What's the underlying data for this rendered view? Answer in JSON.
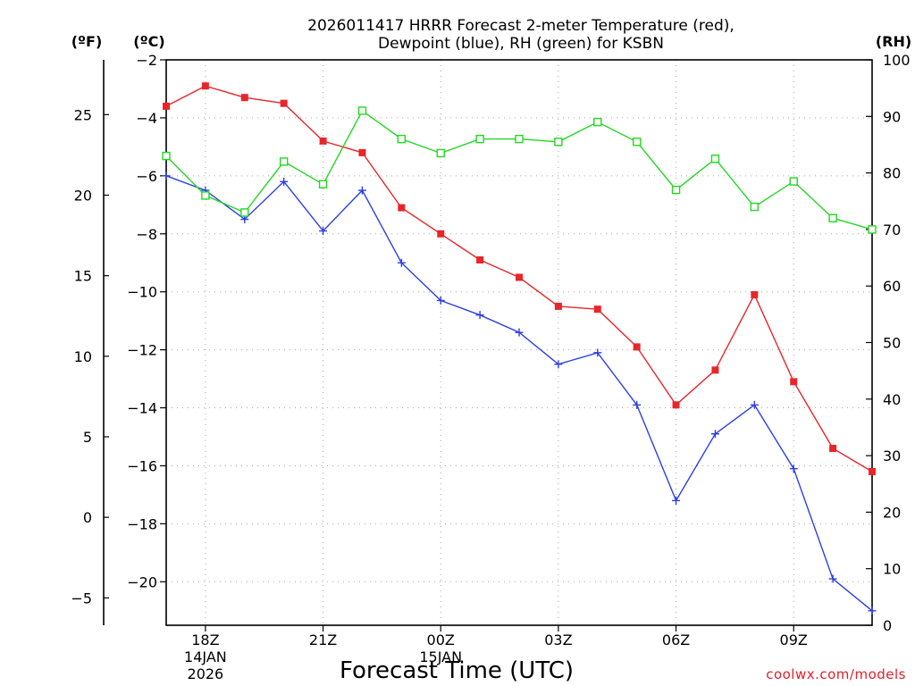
{
  "chart_data": {
    "type": "line",
    "title_line1": "2026011417 HRRR Forecast 2-meter Temperature (red),",
    "title_line2": "Dewpoint (blue), RH (green) for KSBN",
    "xlabel": "Forecast Time (UTC)",
    "credit": "coolwx.com/models",
    "units": {
      "fahrenheit": "(ºF)",
      "celsius": "(ºC)",
      "rh": "(RH)"
    },
    "x": [
      17,
      18,
      19,
      20,
      21,
      22,
      23,
      24,
      25,
      26,
      27,
      28,
      29,
      30,
      31,
      32,
      33,
      34,
      35
    ],
    "xlim": [
      17,
      35
    ],
    "x_ticks": [
      {
        "x": 18,
        "label": "18Z",
        "sub1": "14JAN",
        "sub2": "2026"
      },
      {
        "x": 21,
        "label": "21Z",
        "sub1": "",
        "sub2": ""
      },
      {
        "x": 24,
        "label": "00Z",
        "sub1": "15JAN",
        "sub2": ""
      },
      {
        "x": 27,
        "label": "03Z",
        "sub1": "",
        "sub2": ""
      },
      {
        "x": 30,
        "label": "06Z",
        "sub1": "",
        "sub2": ""
      },
      {
        "x": 33,
        "label": "09Z",
        "sub1": "",
        "sub2": ""
      }
    ],
    "celsius_axis": {
      "ylim": [
        -21.5,
        -2
      ],
      "ticks": [
        -2,
        -4,
        -6,
        -8,
        -10,
        -12,
        -14,
        -16,
        -18,
        -20
      ],
      "tick_labels": [
        "−2",
        "−4",
        "−6",
        "−8",
        "−10",
        "−12",
        "−14",
        "−16",
        "−18",
        "−20"
      ]
    },
    "fahrenheit_axis": {
      "ticks": [
        25,
        20,
        15,
        10,
        5,
        0,
        -5
      ],
      "tick_labels": [
        "25",
        "20",
        "15",
        "10",
        "5",
        "0",
        "−5"
      ]
    },
    "rh_axis": {
      "ylim": [
        0,
        100
      ],
      "ticks": [
        0,
        10,
        20,
        30,
        40,
        50,
        60,
        70,
        80,
        90,
        100
      ],
      "tick_labels": [
        "0",
        "10",
        "20",
        "30",
        "40",
        "50",
        "60",
        "70",
        "80",
        "90",
        "100"
      ]
    },
    "series": [
      {
        "name": "Temperature",
        "axis": "celsius",
        "color": "#e8262a",
        "marker": "filled-square",
        "values": [
          -3.6,
          -2.9,
          -3.3,
          -3.5,
          -4.8,
          -5.2,
          -7.1,
          -8.0,
          -8.9,
          -9.5,
          -10.5,
          -10.6,
          -11.9,
          -13.9,
          -12.7,
          -10.1,
          -13.1,
          -15.4,
          -16.2
        ]
      },
      {
        "name": "Dewpoint",
        "axis": "celsius",
        "color": "#2d3fe3",
        "marker": "plus",
        "values": [
          -6.0,
          -6.5,
          -7.5,
          -6.2,
          -7.9,
          -6.5,
          -9.0,
          -10.3,
          -10.8,
          -11.4,
          -12.5,
          -12.1,
          -13.9,
          -17.2,
          -14.9,
          -13.9,
          -16.1,
          -19.9,
          -21.0
        ]
      },
      {
        "name": "RH",
        "axis": "rh",
        "color": "#22d822",
        "marker": "open-square",
        "values": [
          83,
          76,
          73,
          82,
          78,
          91,
          86,
          83.5,
          86,
          86,
          85.5,
          89,
          85.5,
          77,
          82.5,
          74,
          78.5,
          72,
          70
        ]
      }
    ]
  }
}
